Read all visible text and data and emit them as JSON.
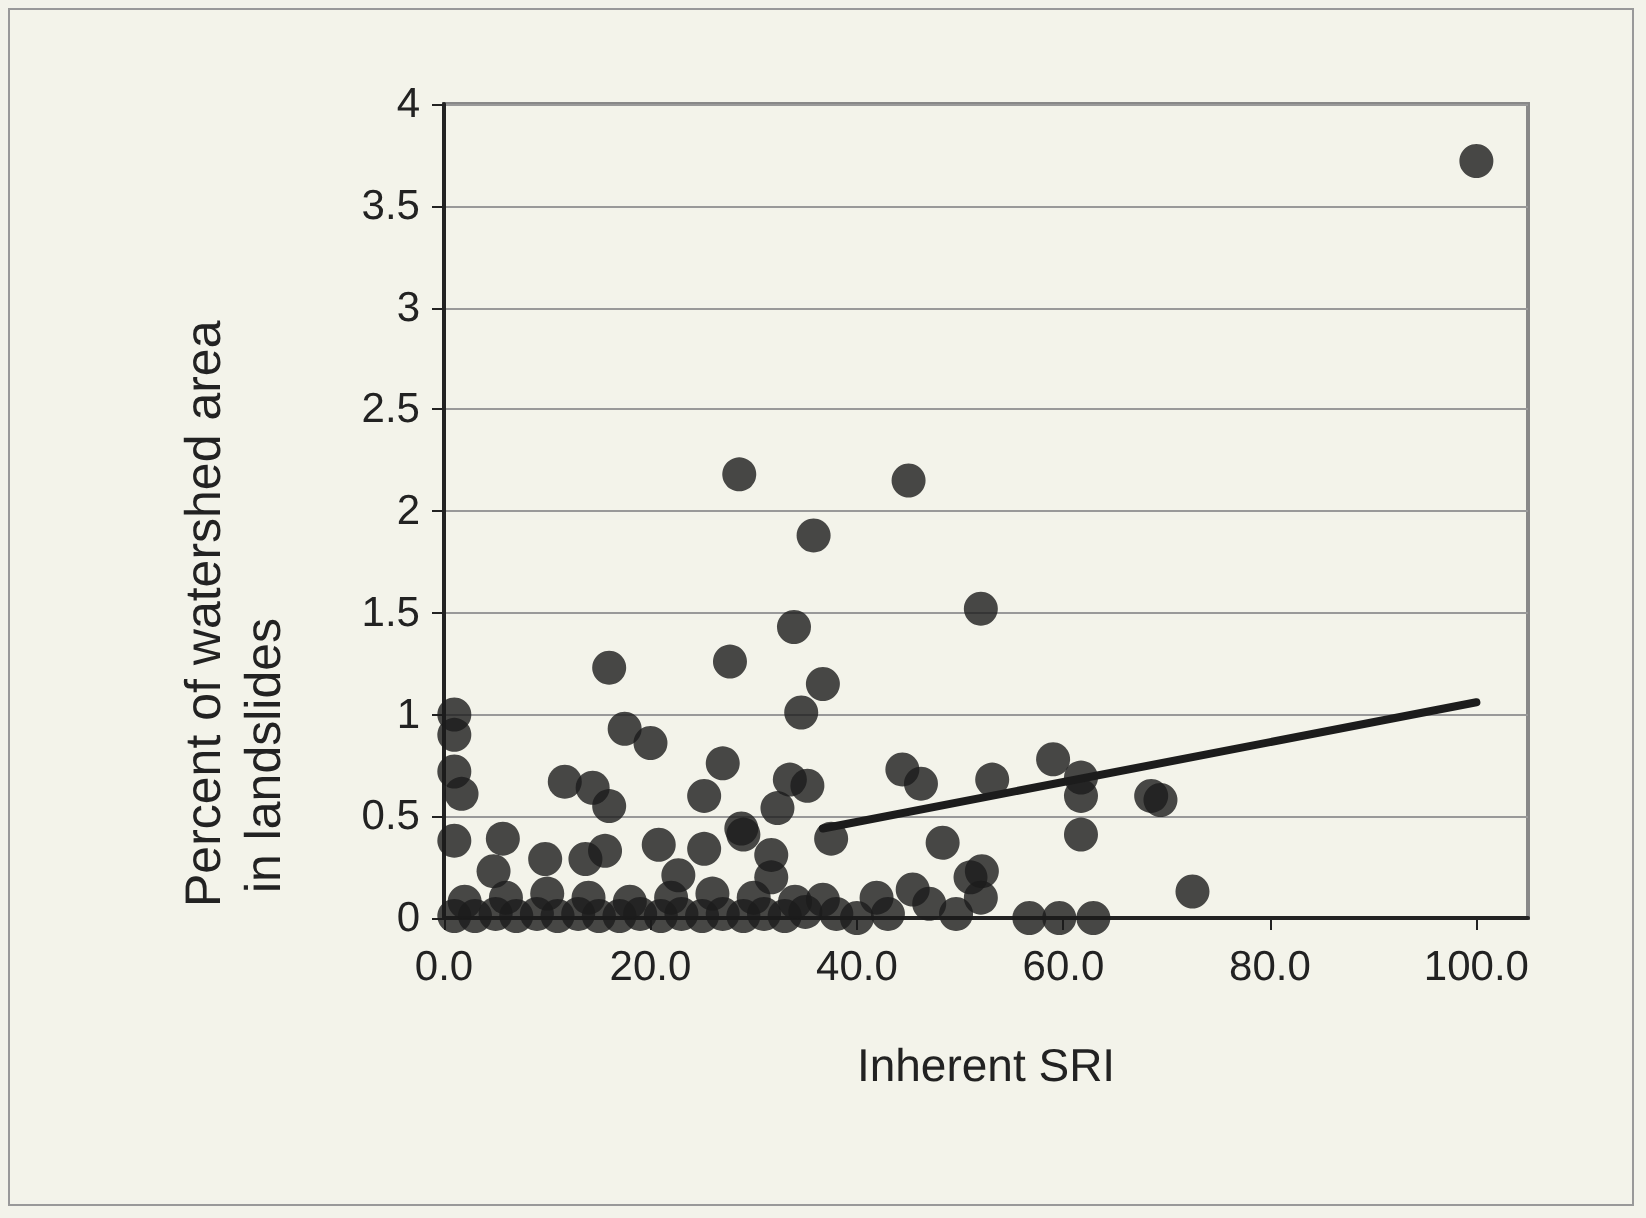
{
  "chart_data": {
    "type": "scatter",
    "xlabel": "Inherent SRI",
    "ylabel": "Percent of watershed area in landslides",
    "xlim": [
      0,
      105
    ],
    "ylim": [
      0,
      4
    ],
    "xticks": [
      {
        "value": 0,
        "label": "0.0"
      },
      {
        "value": 20,
        "label": "20.0"
      },
      {
        "value": 40,
        "label": "40.0"
      },
      {
        "value": 60,
        "label": "60.0"
      },
      {
        "value": 80,
        "label": "80.0"
      },
      {
        "value": 100,
        "label": "100.0"
      }
    ],
    "yticks": [
      0,
      0.5,
      1,
      1.5,
      2,
      2.5,
      3,
      3.5,
      4
    ],
    "grid": "y",
    "marker": "circle",
    "series": [
      {
        "type": "scatter",
        "color": "#1c1c1c",
        "x": [
          100,
          28.6,
          45,
          35.8,
          52,
          16,
          27.7,
          33.9,
          1,
          1,
          17.5,
          20,
          34.6,
          1,
          1.7,
          11.7,
          14.4,
          16,
          27,
          25.2,
          33.5,
          35.2,
          1,
          5.7,
          32.3,
          28.8,
          4.8,
          9.8,
          13.7,
          15.6,
          20.8,
          25.2,
          22.7,
          29,
          31.7,
          36.7,
          44.4,
          46.2,
          53.1,
          59,
          61.7,
          61.7,
          68.5,
          61.7,
          48.3,
          37.5,
          31.7,
          51,
          52.1,
          52,
          36.7,
          41.9,
          45.4,
          47,
          56.7,
          59.6,
          62.9,
          40,
          43,
          49.6,
          69.4,
          72.5,
          1,
          3,
          5,
          7,
          9,
          11,
          13,
          15,
          17,
          19,
          21,
          23,
          25,
          27,
          29,
          31,
          33,
          35,
          38,
          2,
          6,
          10,
          14,
          18,
          22,
          26,
          30,
          34
        ],
        "values": [
          3.72,
          2.18,
          2.15,
          1.88,
          1.52,
          1.23,
          1.26,
          1.43,
          1.0,
          0.9,
          0.93,
          0.86,
          1.01,
          0.72,
          0.61,
          0.67,
          0.64,
          0.55,
          0.76,
          0.6,
          0.68,
          0.65,
          0.38,
          0.39,
          0.54,
          0.44,
          0.23,
          0.29,
          0.29,
          0.33,
          0.36,
          0.34,
          0.21,
          0.41,
          0.31,
          1.15,
          0.73,
          0.66,
          0.68,
          0.78,
          0.69,
          0.6,
          0.6,
          0.41,
          0.37,
          0.39,
          0.2,
          0.2,
          0.23,
          0.1,
          0.09,
          0.1,
          0.14,
          0.07,
          0,
          0,
          0,
          0,
          0.02,
          0.02,
          0.58,
          0.13,
          0.01,
          0.01,
          0.02,
          0.01,
          0.02,
          0.01,
          0.02,
          0.01,
          0.01,
          0.02,
          0.01,
          0.02,
          0.01,
          0.02,
          0.01,
          0.02,
          0.01,
          0.03,
          0.02,
          0.08,
          0.1,
          0.12,
          0.1,
          0.08,
          0.1,
          0.12,
          0.1,
          0.08
        ]
      },
      {
        "type": "line",
        "color": "#1c1c1c",
        "marker": "none",
        "line_style": "solid",
        "x": [
          36.7,
          100
        ],
        "values": [
          0.44,
          1.06
        ]
      }
    ]
  }
}
